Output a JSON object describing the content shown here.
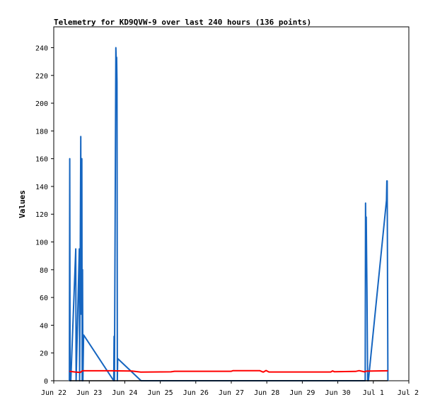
{
  "chart_data": {
    "type": "line",
    "title": "Telemetry for KD9QVW-9 over last 240 hours (136 points)",
    "xlabel": "",
    "ylabel": "Values",
    "ylim": [
      0,
      255
    ],
    "xlim_days": [
      22,
      32
    ],
    "x_ticks": [
      {
        "label": "Jun 22",
        "day": 22
      },
      {
        "label": "Jun 23",
        "day": 23
      },
      {
        "label": "Jun 24",
        "day": 24
      },
      {
        "label": "Jun 25",
        "day": 25
      },
      {
        "label": "Jun 26",
        "day": 26
      },
      {
        "label": "Jun 27",
        "day": 27
      },
      {
        "label": "Jun 28",
        "day": 28
      },
      {
        "label": "Jun 29",
        "day": 29
      },
      {
        "label": "Jun 30",
        "day": 30
      },
      {
        "label": "Jul 1",
        "day": 31
      },
      {
        "label": "Jul 2",
        "day": 32
      }
    ],
    "y_ticks": [
      0,
      20,
      40,
      60,
      80,
      100,
      120,
      140,
      160,
      180,
      200,
      220,
      240
    ],
    "grid": false,
    "legend": "none",
    "series": [
      {
        "color": "#1565c0",
        "points": [
          [
            22.44,
            0
          ],
          [
            22.45,
            160
          ],
          [
            22.46,
            0
          ],
          [
            22.48,
            0
          ],
          [
            22.62,
            95
          ],
          [
            22.63,
            0
          ],
          [
            22.72,
            95
          ],
          [
            22.73,
            0
          ],
          [
            22.76,
            176
          ],
          [
            22.77,
            48
          ],
          [
            22.79,
            160
          ],
          [
            22.8,
            0
          ],
          [
            22.81,
            80
          ],
          [
            22.82,
            0
          ],
          [
            22.84,
            33
          ],
          [
            23.69,
            0
          ],
          [
            23.7,
            32
          ],
          [
            23.71,
            0
          ],
          [
            23.75,
            240
          ],
          [
            23.76,
            230
          ],
          [
            23.77,
            233
          ],
          [
            23.78,
            215
          ],
          [
            23.79,
            0
          ],
          [
            23.8,
            16
          ],
          [
            24.46,
            0
          ],
          [
            30.77,
            0
          ],
          [
            30.78,
            128
          ],
          [
            30.79,
            100
          ],
          [
            30.8,
            118
          ],
          [
            30.81,
            90
          ],
          [
            30.82,
            65
          ],
          [
            30.83,
            30
          ],
          [
            30.84,
            0
          ],
          [
            30.86,
            0
          ],
          [
            31.37,
            130
          ],
          [
            31.38,
            144
          ],
          [
            31.39,
            144
          ],
          [
            31.4,
            72
          ],
          [
            31.41,
            0
          ]
        ]
      },
      {
        "color": "#ff0000",
        "points": [
          [
            22.44,
            6.8
          ],
          [
            22.6,
            6.3
          ],
          [
            22.75,
            6.0
          ],
          [
            22.8,
            7.2
          ],
          [
            23.6,
            7.2
          ],
          [
            24.2,
            7.0
          ],
          [
            24.45,
            6.2
          ],
          [
            25.3,
            6.4
          ],
          [
            25.4,
            6.8
          ],
          [
            27.0,
            6.8
          ],
          [
            27.05,
            7.3
          ],
          [
            27.8,
            7.3
          ],
          [
            27.9,
            6.2
          ],
          [
            27.98,
            7.4
          ],
          [
            28.06,
            6.3
          ],
          [
            29.8,
            6.3
          ],
          [
            29.85,
            7.1
          ],
          [
            29.9,
            6.5
          ],
          [
            30.5,
            6.7
          ],
          [
            30.6,
            7.3
          ],
          [
            30.75,
            6.4
          ],
          [
            30.8,
            6.9
          ],
          [
            31.41,
            7.2
          ]
        ]
      },
      {
        "color": "#000000",
        "points": [
          [
            22.44,
            0
          ],
          [
            31.41,
            0
          ]
        ]
      }
    ]
  }
}
